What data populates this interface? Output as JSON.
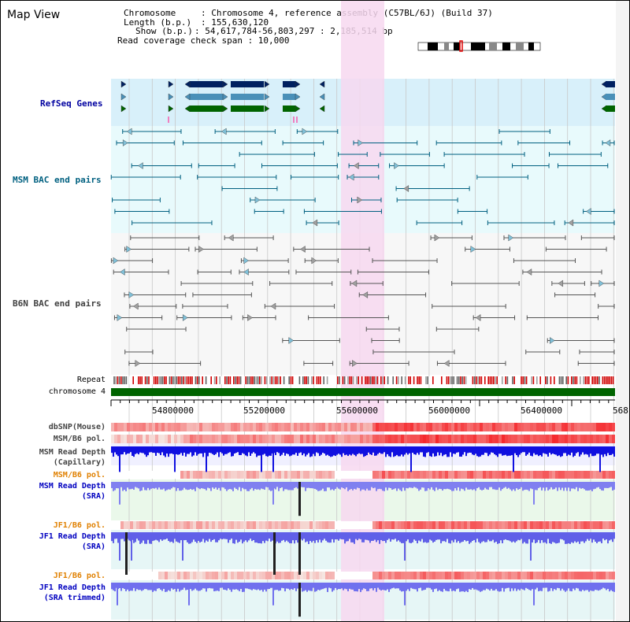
{
  "title": "Map View",
  "header": {
    "line1_key": "Chromosome",
    "line1_val": "Chromosome 4, reference assembly (C57BL/6J) (Build 37)",
    "line2_key": "Length (b.p.)",
    "line2_val": "155,630,120",
    "line3_key": "Show (b.p.)",
    "line3_val": "54,617,784-56,803,297 : 2,185,514 bp",
    "line4": "Read coverage check span : 10,000"
  },
  "tracks": {
    "refseq": "RefSeq Genes",
    "msm_bac": "MSM BAC end pairs",
    "b6n_bac": "B6N BAC end pairs",
    "repeat": "Repeat",
    "chromosome": "chromosome 4",
    "dbsnp": "dbSNP(Mouse)",
    "msm_pol": "MSM/B6 pol.",
    "msm_depth_cap_1": "MSM Read Depth",
    "msm_depth_cap_2": "(Capillary)",
    "msm_pol2": "MSM/B6 pol.",
    "msm_depth_sra_1": "MSM Read Depth",
    "msm_depth_sra_2": "(SRA)",
    "jf1_pol": "JF1/B6 pol.",
    "jf1_depth_sra_1": "JF1 Read Depth",
    "jf1_depth_sra_2": "(SRA)",
    "jf1_pol2": "JF1/B6 pol.",
    "jf1_depth_trim_1": "JF1 Read Depth",
    "jf1_depth_trim_2": "(SRA trimmed)"
  },
  "axis": {
    "ticks": [
      "54800000",
      "55200000",
      "55600000",
      "56000000",
      "56400000",
      "568"
    ]
  },
  "colors": {
    "refseq_label": "#0000a0",
    "msm_label": "#006080",
    "b6n_label": "#404040",
    "orange_label": "#e08000",
    "blue_label": "#0000c0",
    "highlight": "#f7d8f0",
    "chromosome_bar": "#006400"
  }
}
